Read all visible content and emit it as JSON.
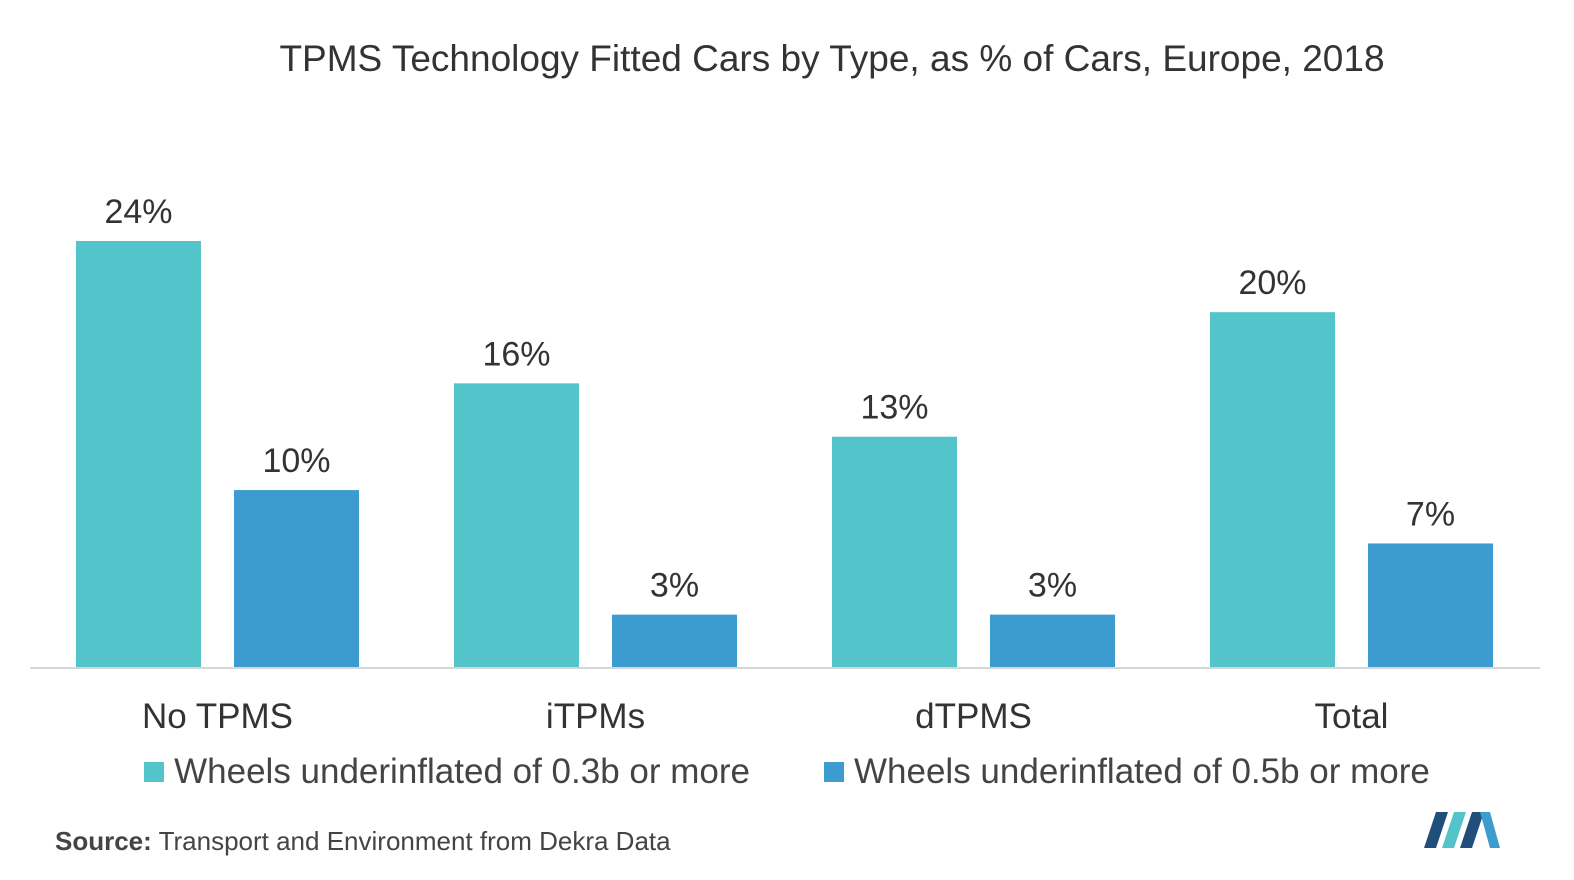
{
  "chart_data": {
    "type": "bar",
    "title": "TPMS Technology Fitted Cars by Type, as % of Cars, Europe, 2018",
    "categories": [
      "No TPMS",
      "iTPMs",
      "dTPMS",
      "Total"
    ],
    "series": [
      {
        "name": "Wheels underinflated of 0.3b or more",
        "values": [
          24,
          16,
          13,
          20
        ],
        "labels": [
          "24%",
          "16%",
          "13%",
          "20%"
        ],
        "color": "#52c4ca"
      },
      {
        "name": "Wheels underinflated of 0.5b or more",
        "values": [
          10,
          3,
          3,
          7
        ],
        "labels": [
          "10%",
          "3%",
          "3%",
          "7%"
        ],
        "color": "#3d9ccf"
      }
    ],
    "ylim": [
      0,
      24
    ],
    "grid": false,
    "legend_position": "bottom"
  },
  "source": {
    "label": "Source:",
    "text": "Transport and Environment from Dekra Data"
  },
  "colors": {
    "series1": "#52c4ca",
    "series2": "#3d9ccf",
    "axis": "#d6d6d6",
    "logo_dark": "#1f4f7a",
    "logo_light": "#52c4ca"
  },
  "logo": {
    "icon": "mordor-logo-icon"
  }
}
